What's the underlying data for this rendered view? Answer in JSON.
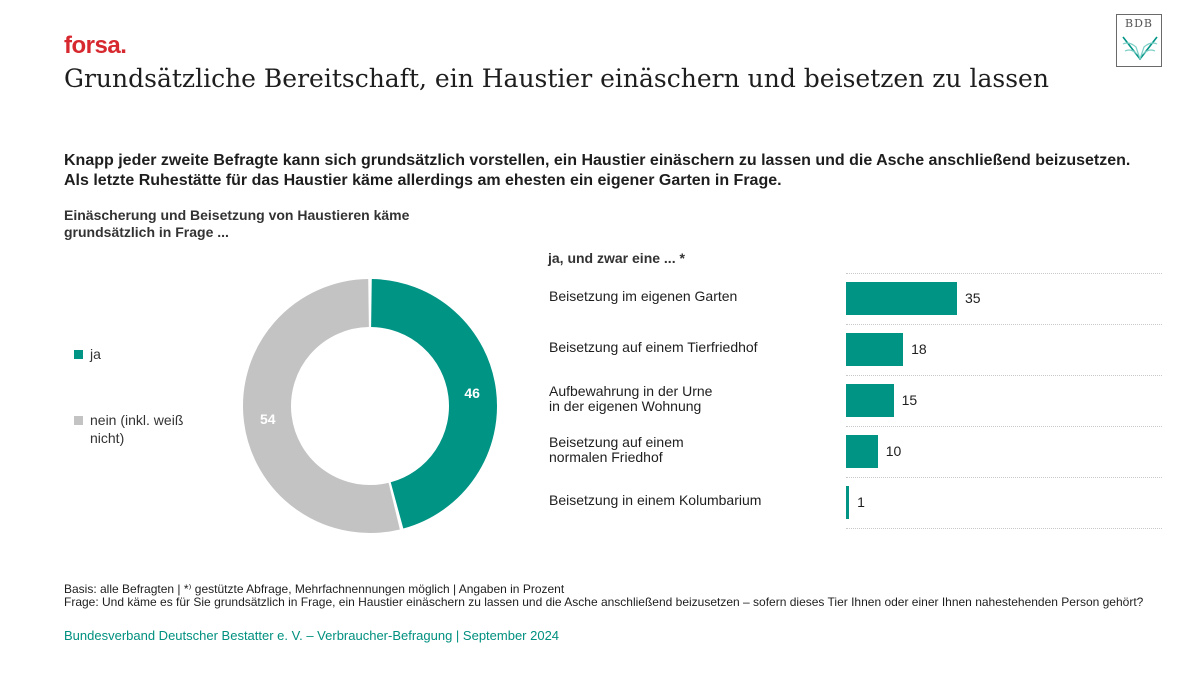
{
  "header": {
    "brand": "forsa.",
    "title": "Grundsätzliche Bereitschaft, ein Haustier einäschern und beisetzen zu lassen",
    "logo_text": "BDB"
  },
  "headline": "Knapp jeder zweite Befragte kann sich grundsätzlich vorstellen, ein Haustier einäschern zu lassen und die Asche anschließend beizusetzen. Als letzte Ruhestätte für das Haustier käme allerdings am ehesten ein eigener Garten in Frage.",
  "colors": {
    "accent": "#009485",
    "grey": "#c3c3c3",
    "brand": "#d7282f",
    "source": "#00907f"
  },
  "chart_data": [
    {
      "type": "pie",
      "variant": "donut",
      "title": "Einäscherung und Beisetzung von Haustieren käme grundsätzlich in Frage ...",
      "categories": [
        "ja",
        "nein (inkl. weiß nicht)"
      ],
      "values": [
        46,
        54
      ],
      "colors": [
        "#009485",
        "#c3c3c3"
      ],
      "labels": [
        "46",
        "54"
      ]
    },
    {
      "type": "bar",
      "orientation": "horizontal",
      "title": "ja, und zwar eine ... *",
      "categories": [
        "Beisetzung im eigenen Garten",
        "Beisetzung auf einem Tierfriedhof",
        "Aufbewahrung in der Urne in der eigenen Wohnung",
        "Beisetzung auf einem normalen Friedhof",
        "Beisetzung in einem Kolumbarium"
      ],
      "display_labels": [
        [
          "Beisetzung im eigenen Garten"
        ],
        [
          "Beisetzung auf einem Tierfriedhof"
        ],
        [
          "Aufbewahrung in der Urne",
          "in der eigenen Wohnung"
        ],
        [
          "Beisetzung auf einem",
          "normalen Friedhof"
        ],
        [
          "Beisetzung in einem Kolumbarium"
        ]
      ],
      "values": [
        35,
        18,
        15,
        10,
        1
      ],
      "unit": "Prozent"
    }
  ],
  "footer": {
    "basis": "Basis: alle Befragten | *⁾ gestützte Abfrage, Mehrfachnennungen möglich | Angaben in Prozent",
    "question": "Frage: Und käme es für Sie grundsätzlich in Frage, ein Haustier einäschern zu lassen und die Asche anschließend beizusetzen – sofern dieses Tier Ihnen oder einer Ihnen nahestehenden Person gehört?",
    "source": "Bundesverband Deutscher Bestatter e. V. – Verbraucher-Befragung | September 2024"
  }
}
